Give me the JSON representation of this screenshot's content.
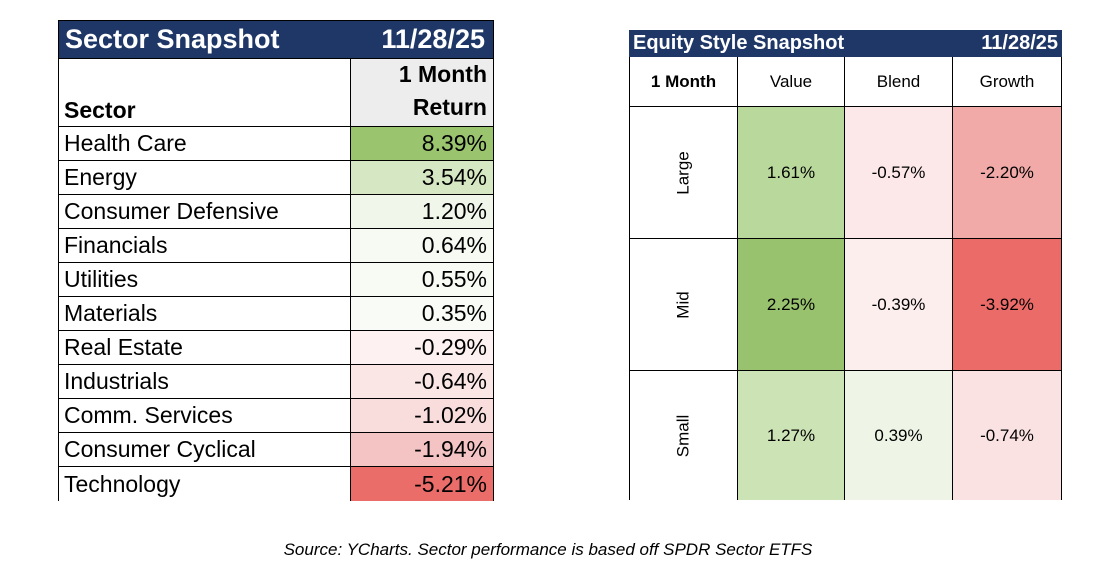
{
  "sector_table": {
    "title": "Sector Snapshot",
    "date": "11/28/25",
    "col_sector": "Sector",
    "col_return_line1": "1 Month",
    "col_return_line2": "Return",
    "rows": [
      {
        "sector": "Health Care",
        "value": "8.39%",
        "color": "#9bc46f"
      },
      {
        "sector": "Energy",
        "value": "3.54%",
        "color": "#d6e8c3"
      },
      {
        "sector": "Consumer Defensive",
        "value": "1.20%",
        "color": "#f0f6e9"
      },
      {
        "sector": "Financials",
        "value": "0.64%",
        "color": "#f6faf2"
      },
      {
        "sector": "Utilities",
        "value": "0.55%",
        "color": "#f7fbf3"
      },
      {
        "sector": "Materials",
        "value": "0.35%",
        "color": "#f9fcf6"
      },
      {
        "sector": "Real Estate",
        "value": "-0.29%",
        "color": "#fdf1f1"
      },
      {
        "sector": "Industrials",
        "value": "-0.64%",
        "color": "#fbe6e6"
      },
      {
        "sector": "Comm. Services",
        "value": "-1.02%",
        "color": "#f9dddd"
      },
      {
        "sector": "Consumer Cyclical",
        "value": "-1.94%",
        "color": "#f4c4c4"
      },
      {
        "sector": "Technology",
        "value": "-5.21%",
        "color": "#eb6d6a"
      }
    ]
  },
  "style_table": {
    "title": "Equity Style Snapshot",
    "date": "11/28/25",
    "corner": "1 Month",
    "columns": [
      "Value",
      "Blend",
      "Growth"
    ],
    "rows": [
      {
        "label": "Large",
        "cells": [
          {
            "value": "1.61%",
            "color": "#b9d89c"
          },
          {
            "value": "-0.57%",
            "color": "#fce8e8"
          },
          {
            "value": "-2.20%",
            "color": "#f1aaa8"
          }
        ]
      },
      {
        "label": "Mid",
        "cells": [
          {
            "value": "2.25%",
            "color": "#99c26e"
          },
          {
            "value": "-0.39%",
            "color": "#fdeeee"
          },
          {
            "value": "-3.92%",
            "color": "#eb6b68"
          }
        ]
      },
      {
        "label": "Small",
        "cells": [
          {
            "value": "1.27%",
            "color": "#cce3b5"
          },
          {
            "value": "0.39%",
            "color": "#eef5e6"
          },
          {
            "value": "-0.74%",
            "color": "#fbe2e2"
          }
        ]
      }
    ]
  },
  "chart_data": [
    {
      "type": "table",
      "title": "Sector Snapshot",
      "subtitle": "11/28/25",
      "columns": [
        "Sector",
        "1 Month Return"
      ],
      "categories": [
        "Health Care",
        "Energy",
        "Consumer Defensive",
        "Financials",
        "Utilities",
        "Materials",
        "Real Estate",
        "Industrials",
        "Comm. Services",
        "Consumer Cyclical",
        "Technology"
      ],
      "values": [
        8.39,
        3.54,
        1.2,
        0.64,
        0.55,
        0.35,
        -0.29,
        -0.64,
        -1.02,
        -1.94,
        -5.21
      ]
    },
    {
      "type": "heatmap",
      "title": "Equity Style Snapshot",
      "subtitle": "11/28/25",
      "x": [
        "Value",
        "Blend",
        "Growth"
      ],
      "y": [
        "Large",
        "Mid",
        "Small"
      ],
      "values": [
        [
          1.61,
          -0.57,
          -2.2
        ],
        [
          2.25,
          -0.39,
          -3.92
        ],
        [
          1.27,
          0.39,
          -0.74
        ]
      ]
    }
  ],
  "source_note": "Source: YCharts. Sector performance is based off SPDR Sector ETFS"
}
